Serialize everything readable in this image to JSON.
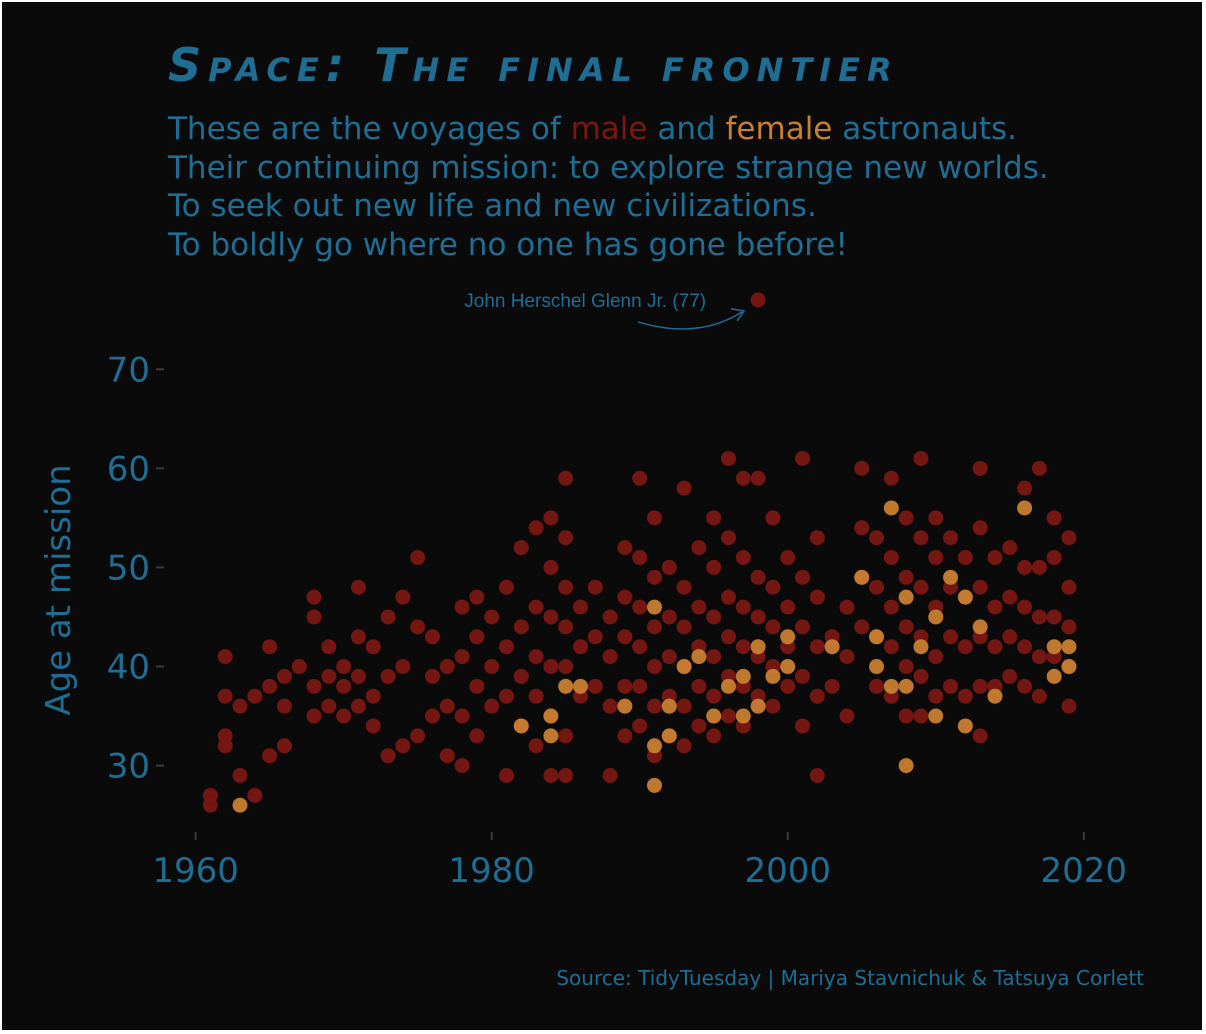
{
  "title": "Space: The final frontier",
  "subtitle": {
    "line1_pre": "These are the voyages of ",
    "line1_male": "male",
    "line1_mid": " and ",
    "line1_female": "female",
    "line1_post": " astronauts.",
    "line2": "Their continuing mission: to explore strange new worlds.",
    "line3": "To seek out new life and new civilizations.",
    "line4": "To boldly go where no one has gone before!"
  },
  "source": "Source: TidyTuesday | Mariya Stavnichuk & Tatsuya Corlett",
  "colors": {
    "background": "#0b0a0b",
    "text": "#1f6d93",
    "male": "#7a1713",
    "female": "#c97f32"
  },
  "chart_data": {
    "type": "scatter",
    "xlabel": "",
    "ylabel": "Age at mission",
    "xlim": [
      1958,
      2024
    ],
    "ylim": [
      23.5,
      78
    ],
    "xticks": [
      1960,
      1980,
      2000,
      2020
    ],
    "yticks": [
      30,
      40,
      50,
      60,
      70
    ],
    "grid": false,
    "legend": "none",
    "annotation": {
      "text": "John Herschel Glenn Jr. (77)",
      "x": 1998,
      "y": 77
    },
    "series": [
      {
        "key": "male",
        "points": [
          [
            1961,
            26
          ],
          [
            1961,
            27
          ],
          [
            1962,
            32
          ],
          [
            1962,
            33
          ],
          [
            1962,
            37
          ],
          [
            1962,
            41
          ],
          [
            1963,
            29
          ],
          [
            1963,
            36
          ],
          [
            1964,
            27
          ],
          [
            1964,
            37
          ],
          [
            1965,
            31
          ],
          [
            1965,
            38
          ],
          [
            1965,
            42
          ],
          [
            1966,
            32
          ],
          [
            1966,
            36
          ],
          [
            1966,
            39
          ],
          [
            1967,
            40
          ],
          [
            1968,
            35
          ],
          [
            1968,
            38
          ],
          [
            1968,
            45
          ],
          [
            1968,
            47
          ],
          [
            1969,
            36
          ],
          [
            1969,
            39
          ],
          [
            1969,
            42
          ],
          [
            1970,
            35
          ],
          [
            1970,
            38
          ],
          [
            1970,
            40
          ],
          [
            1971,
            36
          ],
          [
            1971,
            39
          ],
          [
            1971,
            43
          ],
          [
            1971,
            48
          ],
          [
            1972,
            34
          ],
          [
            1972,
            37
          ],
          [
            1972,
            42
          ],
          [
            1973,
            31
          ],
          [
            1973,
            39
          ],
          [
            1973,
            45
          ],
          [
            1974,
            32
          ],
          [
            1974,
            40
          ],
          [
            1974,
            47
          ],
          [
            1975,
            33
          ],
          [
            1975,
            44
          ],
          [
            1975,
            51
          ],
          [
            1976,
            35
          ],
          [
            1976,
            39
          ],
          [
            1976,
            43
          ],
          [
            1977,
            31
          ],
          [
            1977,
            36
          ],
          [
            1977,
            40
          ],
          [
            1978,
            30
          ],
          [
            1978,
            35
          ],
          [
            1978,
            41
          ],
          [
            1978,
            46
          ],
          [
            1979,
            33
          ],
          [
            1979,
            38
          ],
          [
            1979,
            43
          ],
          [
            1979,
            47
          ],
          [
            1980,
            36
          ],
          [
            1980,
            40
          ],
          [
            1980,
            45
          ],
          [
            1981,
            29
          ],
          [
            1981,
            37
          ],
          [
            1981,
            42
          ],
          [
            1981,
            48
          ],
          [
            1982,
            34
          ],
          [
            1982,
            39
          ],
          [
            1982,
            44
          ],
          [
            1982,
            52
          ],
          [
            1983,
            32
          ],
          [
            1983,
            37
          ],
          [
            1983,
            41
          ],
          [
            1983,
            46
          ],
          [
            1983,
            54
          ],
          [
            1984,
            29
          ],
          [
            1984,
            35
          ],
          [
            1984,
            40
          ],
          [
            1984,
            45
          ],
          [
            1984,
            50
          ],
          [
            1984,
            55
          ],
          [
            1985,
            29
          ],
          [
            1985,
            33
          ],
          [
            1985,
            40
          ],
          [
            1985,
            44
          ],
          [
            1985,
            48
          ],
          [
            1985,
            53
          ],
          [
            1985,
            59
          ],
          [
            1986,
            37
          ],
          [
            1986,
            42
          ],
          [
            1986,
            46
          ],
          [
            1987,
            38
          ],
          [
            1987,
            43
          ],
          [
            1987,
            48
          ],
          [
            1988,
            29
          ],
          [
            1988,
            36
          ],
          [
            1988,
            41
          ],
          [
            1988,
            45
          ],
          [
            1989,
            33
          ],
          [
            1989,
            38
          ],
          [
            1989,
            43
          ],
          [
            1989,
            47
          ],
          [
            1989,
            52
          ],
          [
            1990,
            34
          ],
          [
            1990,
            38
          ],
          [
            1990,
            42
          ],
          [
            1990,
            46
          ],
          [
            1990,
            51
          ],
          [
            1990,
            59
          ],
          [
            1991,
            31
          ],
          [
            1991,
            36
          ],
          [
            1991,
            40
          ],
          [
            1991,
            44
          ],
          [
            1991,
            49
          ],
          [
            1991,
            55
          ],
          [
            1992,
            33
          ],
          [
            1992,
            37
          ],
          [
            1992,
            41
          ],
          [
            1992,
            45
          ],
          [
            1992,
            50
          ],
          [
            1993,
            32
          ],
          [
            1993,
            36
          ],
          [
            1993,
            40
          ],
          [
            1993,
            44
          ],
          [
            1993,
            48
          ],
          [
            1993,
            58
          ],
          [
            1994,
            34
          ],
          [
            1994,
            38
          ],
          [
            1994,
            42
          ],
          [
            1994,
            46
          ],
          [
            1994,
            52
          ],
          [
            1995,
            33
          ],
          [
            1995,
            37
          ],
          [
            1995,
            41
          ],
          [
            1995,
            45
          ],
          [
            1995,
            50
          ],
          [
            1995,
            55
          ],
          [
            1996,
            35
          ],
          [
            1996,
            39
          ],
          [
            1996,
            43
          ],
          [
            1996,
            47
          ],
          [
            1996,
            53
          ],
          [
            1996,
            61
          ],
          [
            1997,
            34
          ],
          [
            1997,
            38
          ],
          [
            1997,
            42
          ],
          [
            1997,
            46
          ],
          [
            1997,
            51
          ],
          [
            1997,
            59
          ],
          [
            1998,
            37
          ],
          [
            1998,
            41
          ],
          [
            1998,
            45
          ],
          [
            1998,
            49
          ],
          [
            1998,
            59
          ],
          [
            1998,
            77
          ],
          [
            1999,
            36
          ],
          [
            1999,
            40
          ],
          [
            1999,
            44
          ],
          [
            1999,
            48
          ],
          [
            1999,
            55
          ],
          [
            2000,
            38
          ],
          [
            2000,
            42
          ],
          [
            2000,
            46
          ],
          [
            2000,
            51
          ],
          [
            2001,
            34
          ],
          [
            2001,
            39
          ],
          [
            2001,
            44
          ],
          [
            2001,
            49
          ],
          [
            2001,
            61
          ],
          [
            2002,
            29
          ],
          [
            2002,
            37
          ],
          [
            2002,
            42
          ],
          [
            2002,
            47
          ],
          [
            2002,
            53
          ],
          [
            2003,
            38
          ],
          [
            2003,
            43
          ],
          [
            2004,
            35
          ],
          [
            2004,
            41
          ],
          [
            2004,
            46
          ],
          [
            2005,
            44
          ],
          [
            2005,
            49
          ],
          [
            2005,
            54
          ],
          [
            2005,
            60
          ],
          [
            2006,
            38
          ],
          [
            2006,
            43
          ],
          [
            2006,
            48
          ],
          [
            2006,
            53
          ],
          [
            2007,
            37
          ],
          [
            2007,
            42
          ],
          [
            2007,
            46
          ],
          [
            2007,
            51
          ],
          [
            2007,
            59
          ],
          [
            2008,
            35
          ],
          [
            2008,
            40
          ],
          [
            2008,
            44
          ],
          [
            2008,
            49
          ],
          [
            2008,
            55
          ],
          [
            2009,
            35
          ],
          [
            2009,
            39
          ],
          [
            2009,
            43
          ],
          [
            2009,
            48
          ],
          [
            2009,
            53
          ],
          [
            2009,
            61
          ],
          [
            2010,
            37
          ],
          [
            2010,
            41
          ],
          [
            2010,
            46
          ],
          [
            2010,
            51
          ],
          [
            2010,
            55
          ],
          [
            2011,
            38
          ],
          [
            2011,
            43
          ],
          [
            2011,
            48
          ],
          [
            2011,
            53
          ],
          [
            2012,
            37
          ],
          [
            2012,
            42
          ],
          [
            2012,
            47
          ],
          [
            2012,
            51
          ],
          [
            2013,
            33
          ],
          [
            2013,
            38
          ],
          [
            2013,
            43
          ],
          [
            2013,
            48
          ],
          [
            2013,
            54
          ],
          [
            2013,
            60
          ],
          [
            2014,
            38
          ],
          [
            2014,
            42
          ],
          [
            2014,
            46
          ],
          [
            2014,
            51
          ],
          [
            2015,
            39
          ],
          [
            2015,
            43
          ],
          [
            2015,
            47
          ],
          [
            2015,
            52
          ],
          [
            2016,
            38
          ],
          [
            2016,
            42
          ],
          [
            2016,
            46
          ],
          [
            2016,
            50
          ],
          [
            2016,
            58
          ],
          [
            2017,
            37
          ],
          [
            2017,
            41
          ],
          [
            2017,
            45
          ],
          [
            2017,
            50
          ],
          [
            2017,
            60
          ],
          [
            2018,
            41
          ],
          [
            2018,
            45
          ],
          [
            2018,
            51
          ],
          [
            2018,
            55
          ],
          [
            2019,
            36
          ],
          [
            2019,
            40
          ],
          [
            2019,
            44
          ],
          [
            2019,
            48
          ],
          [
            2019,
            53
          ]
        ]
      },
      {
        "key": "female",
        "points": [
          [
            1963,
            26
          ],
          [
            1982,
            34
          ],
          [
            1984,
            33
          ],
          [
            1984,
            35
          ],
          [
            1985,
            38
          ],
          [
            1986,
            38
          ],
          [
            1989,
            36
          ],
          [
            1991,
            28
          ],
          [
            1991,
            32
          ],
          [
            1991,
            46
          ],
          [
            1992,
            33
          ],
          [
            1992,
            36
          ],
          [
            1993,
            40
          ],
          [
            1994,
            41
          ],
          [
            1995,
            35
          ],
          [
            1996,
            38
          ],
          [
            1997,
            35
          ],
          [
            1997,
            39
          ],
          [
            1998,
            36
          ],
          [
            1998,
            42
          ],
          [
            1999,
            39
          ],
          [
            2000,
            40
          ],
          [
            2000,
            43
          ],
          [
            2003,
            42
          ],
          [
            2005,
            49
          ],
          [
            2006,
            40
          ],
          [
            2006,
            43
          ],
          [
            2007,
            38
          ],
          [
            2007,
            56
          ],
          [
            2008,
            30
          ],
          [
            2008,
            38
          ],
          [
            2008,
            47
          ],
          [
            2009,
            42
          ],
          [
            2010,
            35
          ],
          [
            2010,
            45
          ],
          [
            2011,
            49
          ],
          [
            2012,
            34
          ],
          [
            2012,
            47
          ],
          [
            2013,
            44
          ],
          [
            2014,
            37
          ],
          [
            2016,
            56
          ],
          [
            2018,
            39
          ],
          [
            2018,
            42
          ],
          [
            2019,
            40
          ],
          [
            2019,
            42
          ]
        ]
      }
    ]
  }
}
